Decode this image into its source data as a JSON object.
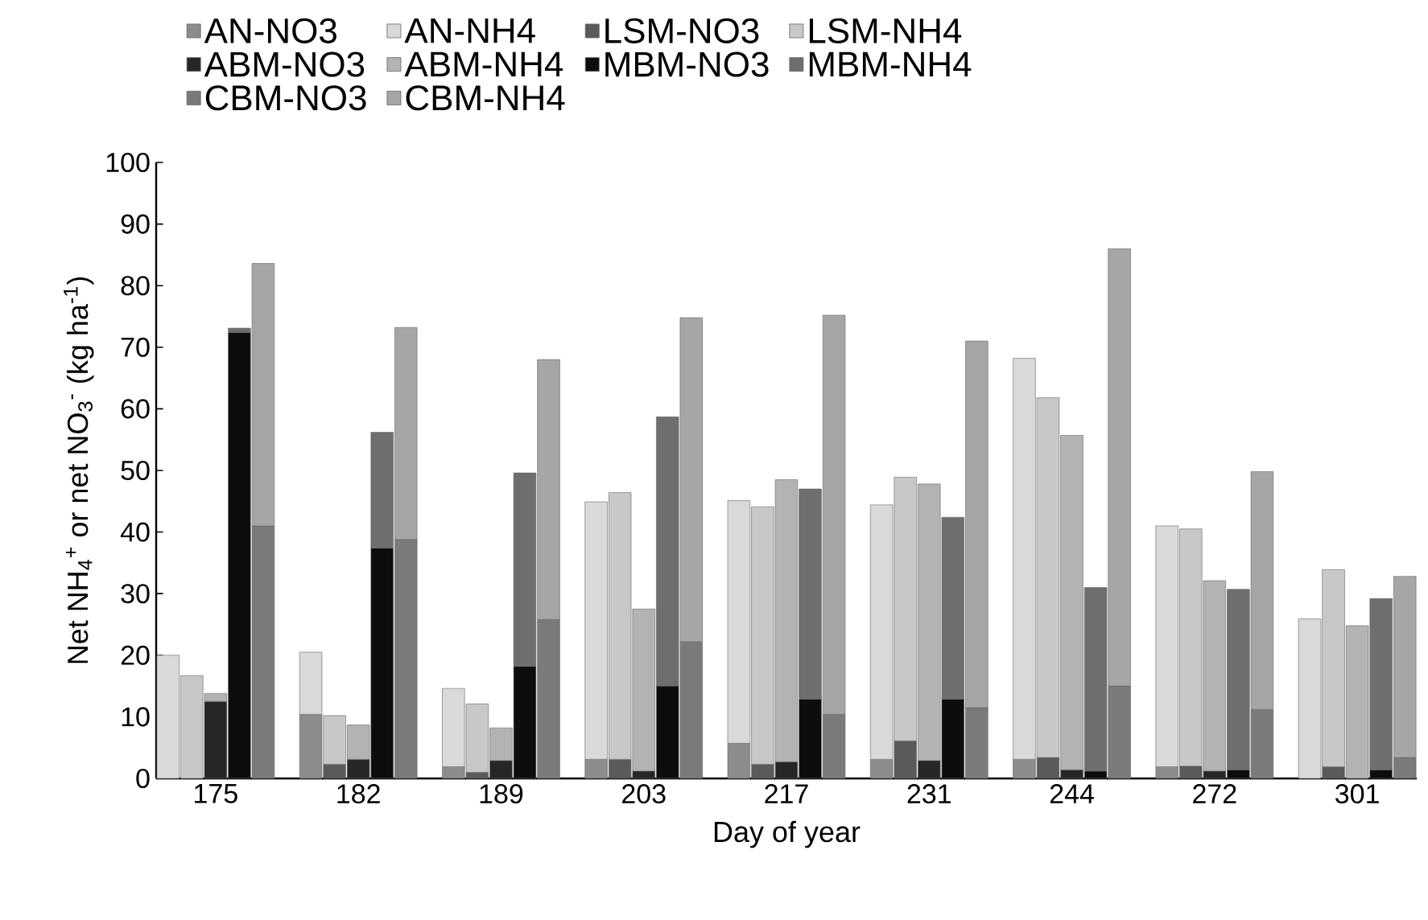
{
  "chart_data": {
    "type": "bar",
    "stacked": true,
    "xlabel": "Day of year",
    "ylabel": "Net NH$_{4}$$^{+}$ or net NO$_{3}$$^{-}$ (kg ha$^{-1}$)",
    "categories": [
      null,
      null,
      "175",
      null,
      null,
      null,
      null,
      null,
      "182",
      null,
      null,
      null,
      null,
      null,
      "189",
      null,
      null,
      null,
      null,
      null,
      "203",
      null,
      null,
      null,
      null,
      null,
      "217",
      null,
      null,
      null,
      null,
      null,
      "231",
      null,
      null,
      null,
      null,
      null,
      "244",
      null,
      null,
      null,
      null,
      null,
      "272",
      null,
      null,
      null,
      null,
      null,
      "301",
      null,
      null
    ],
    "series": [
      {
        "name": "AN-NO3",
        "color": "#8c8c8c",
        "values": [
          null,
          null,
          null,
          null,
          null,
          null,
          10.4,
          null,
          null,
          null,
          null,
          null,
          1.9,
          null,
          null,
          null,
          null,
          null,
          3.1,
          null,
          null,
          null,
          null,
          null,
          5.7,
          null,
          null,
          null,
          null,
          null,
          3.1,
          null,
          null,
          null,
          null,
          null,
          3.1,
          null,
          null,
          null,
          null,
          null,
          1.9,
          null,
          null,
          null,
          null,
          null,
          null,
          null,
          null,
          null,
          null
        ]
      },
      {
        "name": "AN-NH4",
        "color": "#d9d9d9",
        "values": [
          20,
          null,
          null,
          null,
          null,
          null,
          10.1,
          null,
          null,
          null,
          null,
          null,
          12.7,
          null,
          null,
          null,
          null,
          null,
          41.8,
          null,
          null,
          null,
          null,
          null,
          39.4,
          null,
          null,
          null,
          null,
          null,
          41.3,
          null,
          null,
          null,
          null,
          null,
          65.1,
          null,
          null,
          null,
          null,
          null,
          39.1,
          null,
          null,
          null,
          null,
          null,
          25.9,
          null,
          null,
          null,
          null
        ]
      },
      {
        "name": "LSM-NO3",
        "color": "#5a5a5a",
        "values": [
          null,
          null,
          null,
          null,
          null,
          null,
          null,
          2.3,
          null,
          null,
          null,
          null,
          null,
          1.0,
          null,
          null,
          null,
          null,
          null,
          3.1,
          null,
          null,
          null,
          null,
          null,
          2.3,
          null,
          null,
          null,
          null,
          null,
          6.1,
          null,
          null,
          null,
          null,
          null,
          3.4,
          null,
          null,
          null,
          null,
          null,
          2.0,
          null,
          null,
          null,
          null,
          null,
          1.9,
          null,
          null,
          null
        ]
      },
      {
        "name": "LSM-NH4",
        "color": "#c8c8c8",
        "values": [
          null,
          16.7,
          null,
          null,
          null,
          null,
          null,
          7.9,
          null,
          null,
          null,
          null,
          null,
          11.1,
          null,
          null,
          null,
          null,
          null,
          43.3,
          null,
          null,
          null,
          null,
          null,
          41.8,
          null,
          null,
          null,
          null,
          null,
          42.8,
          null,
          null,
          null,
          null,
          null,
          58.4,
          null,
          null,
          null,
          null,
          null,
          38.5,
          null,
          null,
          null,
          null,
          null,
          32.0,
          null,
          null,
          null
        ]
      },
      {
        "name": "ABM-NO3",
        "color": "#262626",
        "values": [
          null,
          null,
          12.5,
          null,
          null,
          null,
          null,
          null,
          3.1,
          null,
          null,
          null,
          null,
          null,
          2.9,
          null,
          null,
          null,
          null,
          null,
          1.2,
          null,
          null,
          null,
          null,
          null,
          2.7,
          null,
          null,
          null,
          null,
          null,
          2.9,
          null,
          null,
          null,
          null,
          null,
          1.4,
          null,
          null,
          null,
          null,
          null,
          1.2,
          null,
          null,
          null,
          null,
          null,
          null,
          null,
          null
        ]
      },
      {
        "name": "ABM-NH4",
        "color": "#b3b3b3",
        "values": [
          null,
          null,
          1.3,
          null,
          null,
          null,
          null,
          null,
          5.6,
          null,
          null,
          null,
          null,
          null,
          5.3,
          null,
          null,
          null,
          null,
          null,
          26.3,
          null,
          null,
          null,
          null,
          null,
          45.8,
          null,
          null,
          null,
          null,
          null,
          44.9,
          null,
          null,
          null,
          null,
          null,
          54.3,
          null,
          null,
          null,
          null,
          null,
          30.9,
          null,
          null,
          null,
          null,
          null,
          24.8,
          null,
          null
        ]
      },
      {
        "name": "MBM-NO3",
        "color": "#0d0d0d",
        "values": [
          null,
          null,
          null,
          72.4,
          null,
          null,
          null,
          null,
          null,
          37.4,
          null,
          null,
          null,
          null,
          null,
          18.2,
          null,
          null,
          null,
          null,
          null,
          15.0,
          null,
          null,
          null,
          null,
          null,
          12.9,
          null,
          null,
          null,
          null,
          null,
          12.9,
          null,
          null,
          null,
          null,
          null,
          1.2,
          null,
          null,
          null,
          null,
          null,
          1.4,
          null,
          null,
          null,
          null,
          null,
          1.4,
          null
        ]
      },
      {
        "name": "MBM-NH4",
        "color": "#6e6e6e",
        "values": [
          null,
          null,
          null,
          0.7,
          null,
          null,
          null,
          null,
          null,
          18.8,
          null,
          null,
          null,
          null,
          null,
          31.4,
          null,
          null,
          null,
          null,
          null,
          43.7,
          null,
          null,
          null,
          null,
          null,
          34.1,
          null,
          null,
          null,
          null,
          null,
          29.5,
          null,
          null,
          null,
          null,
          null,
          29.8,
          null,
          null,
          null,
          null,
          null,
          29.3,
          null,
          null,
          null,
          null,
          null,
          27.8,
          null
        ]
      },
      {
        "name": "CBM-NO3",
        "color": "#7a7a7a",
        "values": [
          null,
          null,
          null,
          null,
          41,
          null,
          null,
          null,
          null,
          null,
          38.8,
          null,
          null,
          null,
          null,
          null,
          25.8,
          null,
          null,
          null,
          null,
          null,
          22.2,
          null,
          null,
          null,
          null,
          null,
          10.4,
          null,
          null,
          null,
          null,
          null,
          11.5,
          null,
          null,
          null,
          null,
          null,
          15.0,
          null,
          null,
          null,
          null,
          null,
          11.2,
          null,
          null,
          null,
          null,
          null,
          3.4
        ]
      },
      {
        "name": "CBM-NH4",
        "color": "#a6a6a6",
        "values": [
          null,
          null,
          null,
          null,
          42.6,
          null,
          null,
          null,
          null,
          null,
          34.4,
          null,
          null,
          null,
          null,
          null,
          42.2,
          null,
          null,
          null,
          null,
          null,
          52.6,
          null,
          null,
          null,
          null,
          null,
          64.8,
          null,
          null,
          null,
          null,
          null,
          59.5,
          null,
          null,
          null,
          null,
          null,
          71.0,
          null,
          null,
          null,
          null,
          null,
          38.6,
          null,
          null,
          null,
          null,
          null,
          29.4
        ]
      }
    ],
    "ylim": [
      0,
      100
    ],
    "yticks": [
      0,
      10,
      20,
      30,
      40,
      50,
      60,
      70,
      80,
      90,
      100
    ],
    "legend": "top left"
  }
}
